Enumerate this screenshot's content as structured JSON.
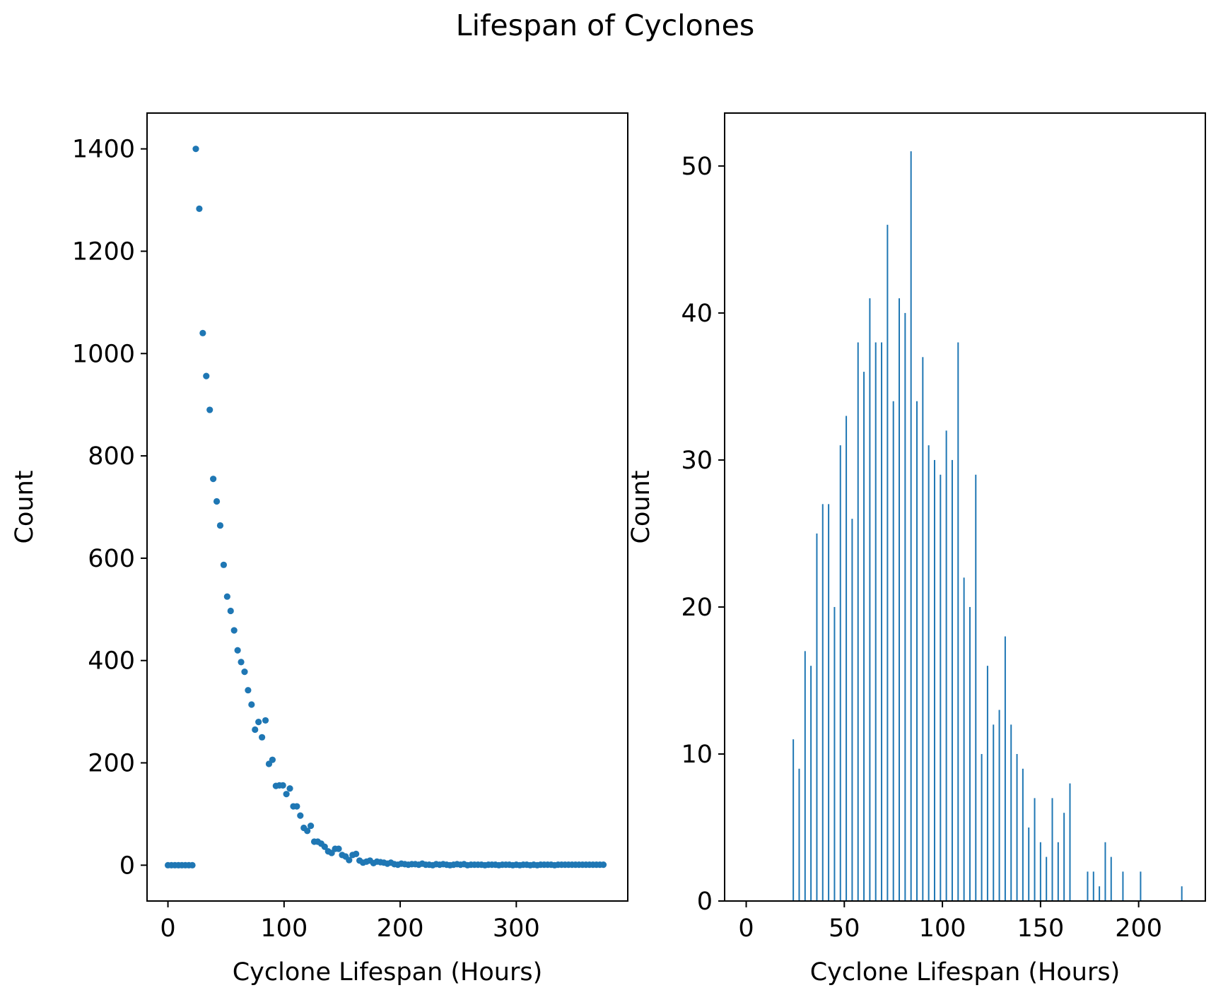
{
  "figure": {
    "title": "Lifespan of Cyclones",
    "color": "#1f77b4"
  },
  "chart_data": [
    {
      "type": "scatter",
      "xlabel": "Cyclone Lifespan (Hours)",
      "ylabel": "Count",
      "xlim": [
        -18,
        396
      ],
      "ylim": [
        -70,
        1470
      ],
      "xticks": [
        0,
        100,
        200,
        300
      ],
      "xtick_labels": [
        "0",
        "100",
        "200",
        "300"
      ],
      "yticks": [
        0,
        200,
        400,
        600,
        800,
        1000,
        1200,
        1400
      ],
      "ytick_labels": [
        "0",
        "200",
        "400",
        "600",
        "800",
        "1000",
        "1200",
        "1400"
      ],
      "grid": false,
      "x": [
        0,
        3,
        6,
        9,
        12,
        15,
        18,
        21,
        24,
        27,
        30,
        33,
        36,
        39,
        42,
        45,
        48,
        51,
        54,
        57,
        60,
        63,
        66,
        69,
        72,
        75,
        78,
        81,
        84,
        87,
        90,
        93,
        96,
        99,
        102,
        105,
        108,
        111,
        114,
        117,
        120,
        123,
        126,
        129,
        132,
        135,
        138,
        141,
        144,
        147,
        150,
        153,
        156,
        159,
        162,
        165,
        168,
        171,
        174,
        177,
        180,
        183,
        186,
        189,
        192,
        195,
        198,
        201,
        204,
        207,
        210,
        213,
        216,
        219,
        222,
        225,
        228,
        231,
        234,
        237,
        240,
        243,
        246,
        249,
        252,
        255,
        258,
        261,
        264,
        267,
        270,
        273,
        276,
        279,
        282,
        285,
        288,
        291,
        294,
        297,
        300,
        303,
        306,
        309,
        312,
        315,
        318,
        321,
        324,
        327,
        330,
        333,
        336,
        339,
        342,
        345,
        348,
        351,
        354,
        357,
        360,
        363,
        366,
        369,
        372,
        375
      ],
      "y": [
        0,
        0,
        0,
        0,
        0,
        0,
        0,
        0,
        1400,
        1283,
        1040,
        956,
        890,
        755,
        711,
        664,
        587,
        525,
        497,
        459,
        420,
        397,
        378,
        342,
        314,
        265,
        280,
        250,
        283,
        198,
        206,
        155,
        156,
        156,
        139,
        150,
        115,
        115,
        97,
        73,
        67,
        77,
        46,
        46,
        42,
        36,
        27,
        24,
        32,
        32,
        20,
        17,
        10,
        20,
        22,
        9,
        5,
        7,
        9,
        4,
        7,
        6,
        5,
        3,
        5,
        2,
        1,
        3,
        2,
        1,
        2,
        2,
        1,
        3,
        1,
        1,
        0,
        2,
        1,
        2,
        1,
        0,
        1,
        2,
        1,
        2,
        0,
        1,
        1,
        1,
        1,
        0,
        1,
        1,
        1,
        0,
        1,
        1,
        1,
        0,
        1,
        0,
        1,
        1,
        0,
        1,
        0,
        1,
        1,
        1,
        1,
        0,
        1,
        1,
        1,
        1,
        1,
        1,
        1,
        1,
        1,
        1,
        1,
        1,
        1,
        1
      ]
    },
    {
      "type": "bar",
      "xlabel": "Cyclone Lifespan (Hours)",
      "ylabel": "Count",
      "xlim": [
        -11,
        234
      ],
      "ylim": [
        0,
        53.6
      ],
      "xticks": [
        0,
        50,
        100,
        150,
        200
      ],
      "xtick_labels": [
        "0",
        "50",
        "100",
        "150",
        "200"
      ],
      "yticks": [
        0,
        10,
        20,
        30,
        40,
        50
      ],
      "ytick_labels": [
        "0",
        "10",
        "20",
        "30",
        "40",
        "50"
      ],
      "grid": false,
      "x": [
        24,
        27,
        30,
        33,
        36,
        39,
        42,
        45,
        48,
        51,
        54,
        57,
        60,
        63,
        66,
        69,
        72,
        75,
        78,
        81,
        84,
        87,
        90,
        93,
        96,
        99,
        102,
        105,
        108,
        111,
        114,
        117,
        120,
        123,
        126,
        129,
        132,
        135,
        138,
        141,
        144,
        147,
        150,
        153,
        156,
        159,
        162,
        165,
        174,
        177,
        180,
        183,
        186,
        192,
        201,
        222
      ],
      "values": [
        11,
        9,
        17,
        16,
        25,
        27,
        27,
        20,
        31,
        33,
        26,
        38,
        36,
        41,
        38,
        38,
        46,
        34,
        41,
        40,
        51,
        34,
        37,
        31,
        30,
        29,
        32,
        30,
        38,
        22,
        20,
        29,
        10,
        16,
        12,
        13,
        18,
        12,
        10,
        9,
        5,
        7,
        4,
        3,
        7,
        4,
        6,
        8,
        2,
        2,
        1,
        4,
        3,
        2,
        2,
        1
      ]
    }
  ]
}
